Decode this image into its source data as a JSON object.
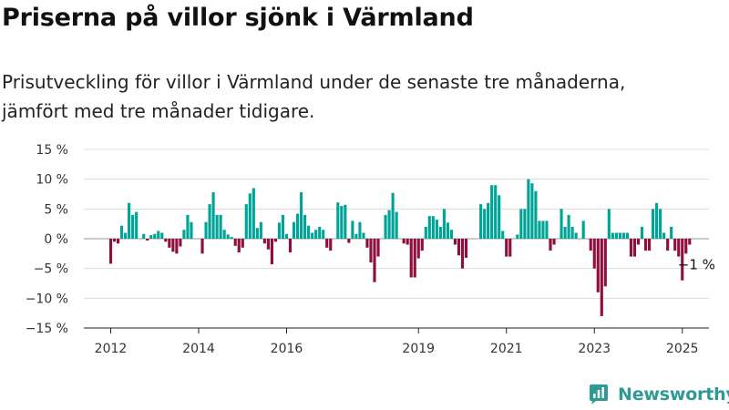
{
  "title": "Priserna på villor sjönk i Värmland",
  "subtitle_lines": [
    "Prisutveckling för villor i Värmland under de senaste tre månaderna,",
    "jämfört med tre månader tidigare."
  ],
  "brand": {
    "name": "Newsworthy",
    "icon": "newsworthy-logo-icon",
    "color": "#2e9a95"
  },
  "chart_data": {
    "type": "bar",
    "x_start": "2012-01",
    "ylim": [
      -15,
      15
    ],
    "yticks": [
      15,
      10,
      5,
      0,
      -5,
      -10,
      -15
    ],
    "ytick_labels": [
      "15 %",
      "10 %",
      "5 %",
      "0 %",
      "−5 %",
      "−10 %",
      "−15 %"
    ],
    "xticks": [
      "2012",
      "2014",
      "2016",
      "2019",
      "2021",
      "2023",
      "2025"
    ],
    "xtick_positions": [
      "2012-01",
      "2014-01",
      "2016-01",
      "2019-01",
      "2021-01",
      "2023-01",
      "2025-01"
    ],
    "positive_color": "#00a497",
    "negative_color": "#8e0e3e",
    "grid": true,
    "annotation": {
      "text": "−1 %",
      "at": "2025-03",
      "value": -1
    },
    "values": [
      -4.2,
      -0.5,
      -0.8,
      2.2,
      1.0,
      6.0,
      4.0,
      4.5,
      0.0,
      0.8,
      -0.3,
      0.6,
      0.8,
      1.3,
      1.0,
      -0.5,
      -1.5,
      -2.2,
      -2.5,
      -1.3,
      1.5,
      4.0,
      2.8,
      0.0,
      0.0,
      -2.5,
      2.8,
      5.8,
      7.8,
      4.0,
      4.0,
      1.5,
      0.7,
      0.3,
      -1.2,
      -2.3,
      -1.5,
      5.8,
      7.6,
      8.5,
      1.8,
      2.8,
      -0.8,
      -1.8,
      -4.3,
      -0.5,
      2.7,
      4.0,
      0.8,
      -2.3,
      2.8,
      4.2,
      7.8,
      4.0,
      2.2,
      1.0,
      1.5,
      2.0,
      1.5,
      -1.5,
      -2.0,
      0.0,
      6.1,
      5.5,
      5.7,
      -0.7,
      3.0,
      0.8,
      2.8,
      1.0,
      -1.5,
      -4.0,
      -7.3,
      -3.0,
      0.0,
      4.0,
      4.8,
      7.7,
      4.5,
      0.0,
      -0.8,
      -1.0,
      -6.5,
      -6.5,
      -3.3,
      -2.0,
      2.0,
      3.8,
      3.8,
      3.2,
      2.0,
      5.0,
      2.7,
      1.5,
      -1.0,
      -2.8,
      -5.0,
      -3.2,
      0.0,
      0.0,
      0.0,
      5.8,
      5.0,
      6.0,
      9.0,
      9.0,
      7.3,
      1.3,
      -3.0,
      -3.0,
      0.0,
      0.7,
      5.0,
      5.0,
      10.0,
      9.3,
      8.0,
      3.0,
      3.0,
      3.0,
      -2.0,
      -1.0,
      0.0,
      5.0,
      2.0,
      4.0,
      2.0,
      1.0,
      0.0,
      3.0,
      0.0,
      -2.0,
      -5.0,
      -9.0,
      -13.0,
      -8.0,
      5.0,
      1.0,
      1.0,
      1.0,
      1.0,
      1.0,
      -3.0,
      -3.0,
      -1.0,
      2.0,
      -2.0,
      -2.0,
      5.0,
      6.0,
      5.0,
      1.0,
      -2.0,
      2.0,
      -2.0,
      -3.0,
      -7.0,
      -2.5,
      -1.0
    ]
  }
}
